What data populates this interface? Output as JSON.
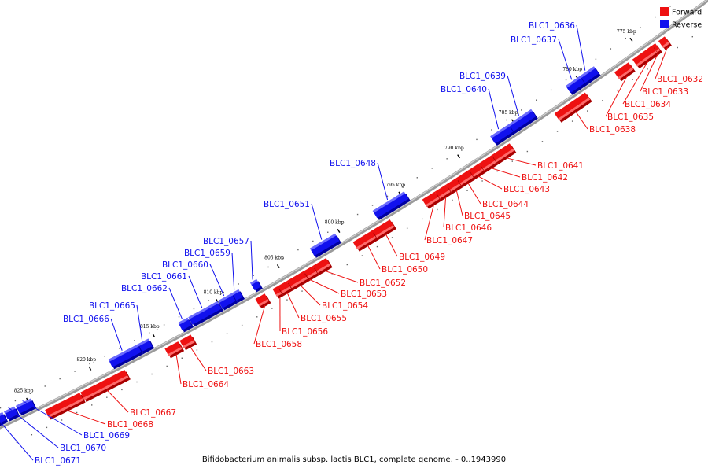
{
  "caption": "Bifidobacterium animalis subsp. lactis BLC1, complete genome. - 0..1943990",
  "legend": [
    {
      "label": "Forward",
      "color": "#ee1111"
    },
    {
      "label": "Reverse",
      "color": "#1111ee"
    }
  ],
  "colors": {
    "forward": "#ee1111",
    "reverse": "#1111ee",
    "backbone": "#888888"
  },
  "kbp_ticks": [
    "775 kbp",
    "780 kbp",
    "785 kbp",
    "790 kbp",
    "795 kbp",
    "800 kbp",
    "805 kbp",
    "810 kbp",
    "815 kbp",
    "820 kbp",
    "825 kbp"
  ],
  "genes": [
    {
      "id": "BLC1_0632",
      "strand": "forward"
    },
    {
      "id": "BLC1_0633",
      "strand": "forward"
    },
    {
      "id": "BLC1_0634",
      "strand": "forward"
    },
    {
      "id": "BLC1_0635",
      "strand": "forward"
    },
    {
      "id": "BLC1_0636",
      "strand": "reverse"
    },
    {
      "id": "BLC1_0637",
      "strand": "reverse"
    },
    {
      "id": "BLC1_0638",
      "strand": "forward"
    },
    {
      "id": "BLC1_0639",
      "strand": "reverse"
    },
    {
      "id": "BLC1_0640",
      "strand": "reverse"
    },
    {
      "id": "BLC1_0641",
      "strand": "forward"
    },
    {
      "id": "BLC1_0642",
      "strand": "forward"
    },
    {
      "id": "BLC1_0643",
      "strand": "forward"
    },
    {
      "id": "BLC1_0644",
      "strand": "forward"
    },
    {
      "id": "BLC1_0645",
      "strand": "forward"
    },
    {
      "id": "BLC1_0646",
      "strand": "forward"
    },
    {
      "id": "BLC1_0647",
      "strand": "forward"
    },
    {
      "id": "BLC1_0648",
      "strand": "reverse"
    },
    {
      "id": "BLC1_0649",
      "strand": "forward"
    },
    {
      "id": "BLC1_0650",
      "strand": "forward"
    },
    {
      "id": "BLC1_0651",
      "strand": "reverse"
    },
    {
      "id": "BLC1_0652",
      "strand": "forward"
    },
    {
      "id": "BLC1_0653",
      "strand": "forward"
    },
    {
      "id": "BLC1_0654",
      "strand": "forward"
    },
    {
      "id": "BLC1_0655",
      "strand": "forward"
    },
    {
      "id": "BLC1_0656",
      "strand": "forward"
    },
    {
      "id": "BLC1_0657",
      "strand": "reverse"
    },
    {
      "id": "BLC1_0658",
      "strand": "forward"
    },
    {
      "id": "BLC1_0659",
      "strand": "reverse"
    },
    {
      "id": "BLC1_0660",
      "strand": "reverse"
    },
    {
      "id": "BLC1_0661",
      "strand": "reverse"
    },
    {
      "id": "BLC1_0662",
      "strand": "reverse"
    },
    {
      "id": "BLC1_0663",
      "strand": "forward"
    },
    {
      "id": "BLC1_0664",
      "strand": "forward"
    },
    {
      "id": "BLC1_0665",
      "strand": "reverse"
    },
    {
      "id": "BLC1_0666",
      "strand": "reverse"
    },
    {
      "id": "BLC1_0667",
      "strand": "forward"
    },
    {
      "id": "BLC1_0668",
      "strand": "forward"
    },
    {
      "id": "BLC1_0669",
      "strand": "reverse"
    },
    {
      "id": "BLC1_0670",
      "strand": "reverse"
    },
    {
      "id": "BLC1_0671",
      "strand": "reverse"
    }
  ]
}
